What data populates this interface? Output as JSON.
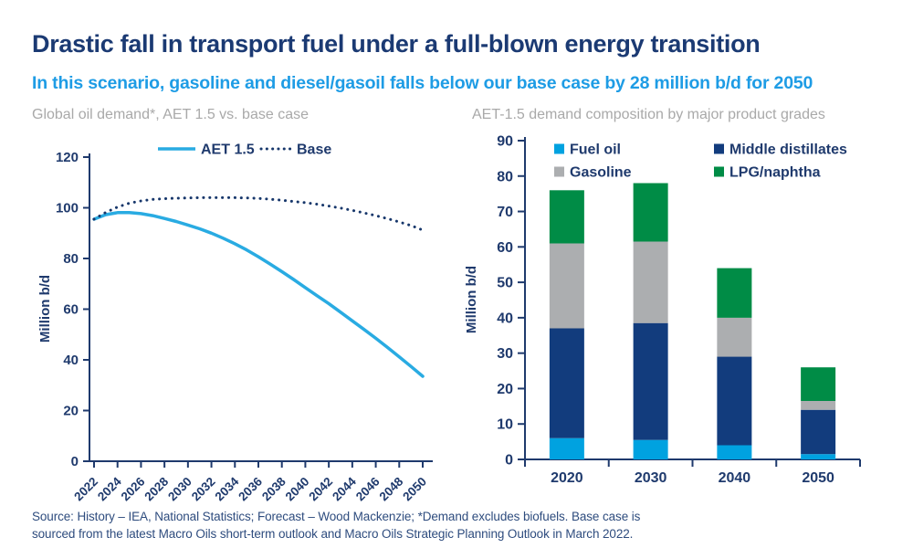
{
  "header": {
    "title": "Drastic fall in transport fuel under a full-blown energy transition",
    "subtitle": "In this scenario, gasoline and diesel/gasoil falls below our base case by 28 million b/d for 2050"
  },
  "source": {
    "line1": "Source: History – IEA, National Statistics; Forecast – Wood Mackenzie; *Demand excludes biofuels. Base case is",
    "line2": "sourced from the latest Macro Oils short-term outlook and Macro Oils Strategic Planning Outlook in March 2022."
  },
  "colors": {
    "title_navy": "#1B3A73",
    "subtitle_blue": "#1E9CE5",
    "panel_title_gray": "#A9A9A9",
    "axis_navy": "#1F3A6D",
    "source_navy": "#2E4C7E"
  },
  "chart_data": [
    {
      "type": "line",
      "title": "Global oil demand*, AET 1.5 vs. base case",
      "ylabel": "Million b/d",
      "ylim": [
        0,
        120
      ],
      "ytick_step": 20,
      "x_start": 2022,
      "x_end": 2050,
      "xtick_labels": [
        "2022",
        "2024",
        "2026",
        "2028",
        "2030",
        "2032",
        "2034",
        "2036",
        "2038",
        "2040",
        "2042",
        "2044",
        "2046",
        "2048",
        "2050"
      ],
      "grid": false,
      "legend_position": "top",
      "series": [
        {
          "name": "AET 1.5",
          "style": "solid",
          "color": "#29ABE2",
          "values": [
            95.5,
            97.3,
            98.1,
            98.1,
            97.7,
            96.9,
            95.8,
            94.6,
            93.2,
            91.7,
            90.0,
            88.0,
            85.8,
            83.4,
            80.7,
            77.8,
            74.8,
            71.7,
            68.5,
            65.3,
            62.2,
            58.8,
            55.4,
            52.0,
            48.5,
            44.9,
            41.2,
            37.4,
            33.5
          ]
        },
        {
          "name": "Base",
          "style": "dotted",
          "color": "#17376B",
          "values": [
            95.5,
            98.2,
            100.3,
            101.8,
            102.7,
            103.3,
            103.6,
            103.8,
            103.9,
            104.0,
            104.0,
            104.0,
            104.0,
            103.9,
            103.7,
            103.4,
            103.0,
            102.5,
            102.0,
            101.4,
            100.7,
            99.9,
            99.0,
            98.0,
            96.9,
            95.7,
            94.4,
            93.0,
            91.2
          ]
        }
      ]
    },
    {
      "type": "bar",
      "subtype": "stacked",
      "title": "AET-1.5 demand composition by major product grades",
      "ylabel": "Million b/d",
      "ylim": [
        0,
        90
      ],
      "ytick_step": 10,
      "categories": [
        "2020",
        "2030",
        "2040",
        "2050"
      ],
      "grid": false,
      "legend_position": "top-inside",
      "legend_columns": [
        [
          "Fuel oil",
          "Gasoline"
        ],
        [
          "Middle distillates",
          "LPG/naphtha"
        ]
      ],
      "series": [
        {
          "name": "Fuel oil",
          "color": "#00A2E0",
          "values": [
            6.0,
            5.5,
            4.0,
            1.5
          ]
        },
        {
          "name": "Middle distillates",
          "color": "#123C7D",
          "values": [
            31.0,
            33.0,
            25.0,
            12.5
          ]
        },
        {
          "name": "Gasoline",
          "color": "#ACAEB0",
          "values": [
            24.0,
            23.0,
            11.0,
            2.5
          ]
        },
        {
          "name": "LPG/naphtha",
          "color": "#008C46",
          "values": [
            15.0,
            16.5,
            14.0,
            9.5
          ]
        }
      ],
      "totals": [
        76,
        78,
        54,
        26
      ]
    }
  ]
}
